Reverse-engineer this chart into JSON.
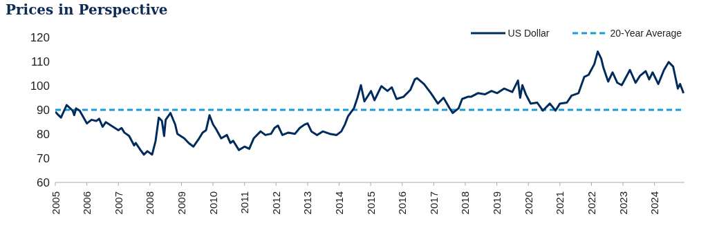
{
  "chart_data": {
    "type": "line",
    "title": "Prices in Perspective",
    "xlim": [
      2005,
      2024.95
    ],
    "xticks": [
      2005,
      2006,
      2007,
      2008,
      2009,
      2010,
      2011,
      2012,
      2013,
      2014,
      2015,
      2016,
      2017,
      2018,
      2019,
      2020,
      2021,
      2022,
      2023,
      2024
    ],
    "ylim": [
      60,
      120
    ],
    "yticks": [
      60,
      70,
      80,
      90,
      100,
      110,
      120
    ],
    "grid": false,
    "legend": "top right",
    "marker": "none",
    "line_style": "solid",
    "series": [
      {
        "name": "US Dollar",
        "color": "#002b5c",
        "x": [
          2005.0,
          2005.1,
          2005.18,
          2005.36,
          2005.55,
          2005.6,
          2005.66,
          2005.77,
          2006.0,
          2006.15,
          2006.3,
          2006.39,
          2006.5,
          2006.6,
          2007.0,
          2007.1,
          2007.19,
          2007.34,
          2007.5,
          2007.55,
          2007.7,
          2007.81,
          2007.92,
          2008.07,
          2008.18,
          2008.28,
          2008.38,
          2008.45,
          2008.5,
          2008.65,
          2008.8,
          2008.87,
          2009.09,
          2009.23,
          2009.38,
          2009.56,
          2009.67,
          2009.78,
          2009.89,
          2010.0,
          2010.1,
          2010.26,
          2010.44,
          2010.55,
          2010.64,
          2010.82,
          2011.0,
          2011.15,
          2011.29,
          2011.51,
          2011.66,
          2011.84,
          2011.95,
          2012.06,
          2012.2,
          2012.39,
          2012.6,
          2012.75,
          2012.9,
          2013.0,
          2013.12,
          2013.3,
          2013.48,
          2013.7,
          2013.92,
          2014.07,
          2014.18,
          2014.28,
          2014.47,
          2014.58,
          2014.69,
          2014.8,
          2015.01,
          2015.12,
          2015.34,
          2015.53,
          2015.67,
          2015.82,
          2016.04,
          2016.26,
          2016.4,
          2016.47,
          2016.69,
          2016.91,
          2017.13,
          2017.31,
          2017.5,
          2017.6,
          2017.79,
          2017.9,
          2018.08,
          2018.18,
          2018.4,
          2018.62,
          2018.83,
          2019.01,
          2019.23,
          2019.49,
          2019.67,
          2019.74,
          2019.81,
          2019.92,
          2020.07,
          2020.28,
          2020.46,
          2020.68,
          2020.86,
          2021.0,
          2021.22,
          2021.37,
          2021.59,
          2021.77,
          2021.91,
          2022.09,
          2022.2,
          2022.31,
          2022.38,
          2022.53,
          2022.67,
          2022.82,
          2022.96,
          2023.22,
          2023.4,
          2023.54,
          2023.72,
          2023.83,
          2023.94,
          2024.12,
          2024.3,
          2024.45,
          2024.59,
          2024.74,
          2024.81,
          2024.92
        ],
        "values": [
          89.2,
          87.8,
          86.8,
          92,
          89.7,
          87.8,
          90.6,
          89.7,
          84.4,
          85.9,
          85.4,
          86.3,
          83,
          84.9,
          81.6,
          82.5,
          80.6,
          79.2,
          75.3,
          76.3,
          73.4,
          71.5,
          72.9,
          71.5,
          77.2,
          86.8,
          85.4,
          79.2,
          85.9,
          88.7,
          84,
          80.1,
          78.2,
          76.3,
          74.8,
          78.2,
          80.6,
          81.6,
          87.8,
          84,
          82,
          78.2,
          79.6,
          76.3,
          77.2,
          73.4,
          74.8,
          73.9,
          78.2,
          81.1,
          79.6,
          80.1,
          82.5,
          83.5,
          79.6,
          80.6,
          80.1,
          82.5,
          83.9,
          84.4,
          81.1,
          79.6,
          81.1,
          80.1,
          79.6,
          81.1,
          83.9,
          87.3,
          90.7,
          95,
          100.2,
          93.5,
          97.8,
          94,
          99.8,
          97.8,
          99.3,
          94.5,
          95.4,
          98.3,
          102.6,
          103.1,
          100.7,
          96.9,
          92.6,
          95,
          90.7,
          88.7,
          90.7,
          94.5,
          95.4,
          95.4,
          96.9,
          96.4,
          97.8,
          96.9,
          98.8,
          97.4,
          102.1,
          95,
          100.2,
          96.4,
          92.6,
          93,
          89.7,
          92.6,
          89.7,
          92.6,
          93,
          95.9,
          96.9,
          103.6,
          104.5,
          108.9,
          114.1,
          111.2,
          107.4,
          101.7,
          105.5,
          101.2,
          100.2,
          106.5,
          101.2,
          104.1,
          106,
          102.6,
          105.5,
          100.7,
          106.5,
          109.8,
          107.9,
          98.8,
          100.7,
          96.9
        ]
      }
    ],
    "ref_lines": [
      {
        "axis": "y",
        "value": 90,
        "label": "20-Year Average",
        "color": "#1a9ad6",
        "line_style": "dashed"
      }
    ]
  }
}
